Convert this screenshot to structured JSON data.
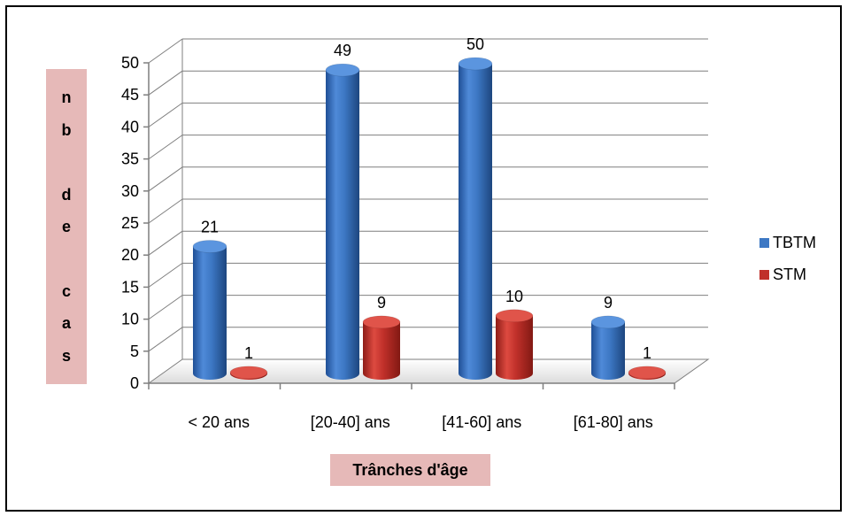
{
  "chart_data": {
    "type": "bar",
    "style": "3d-cylinder",
    "categories": [
      "< 20 ans",
      "[20-40] ans",
      "[41-60] ans",
      "[61-80] ans"
    ],
    "series": [
      {
        "name": "TBTM",
        "values": [
          21,
          49,
          50,
          9
        ],
        "color": "#3d78c4"
      },
      {
        "name": "STM",
        "values": [
          1,
          9,
          10,
          1
        ],
        "color": "#c0302a"
      }
    ],
    "title": "",
    "xlabel": "Trânches d'âge",
    "ylabel_letters": [
      "n",
      "b",
      "",
      "d",
      "e",
      "",
      "c",
      "a",
      "s"
    ],
    "ylim": [
      0,
      50
    ],
    "yticks": [
      0,
      5,
      10,
      15,
      20,
      25,
      30,
      35,
      40,
      45,
      50
    ],
    "grid": true,
    "legend": "right",
    "label_background": "#e6b9b8"
  }
}
